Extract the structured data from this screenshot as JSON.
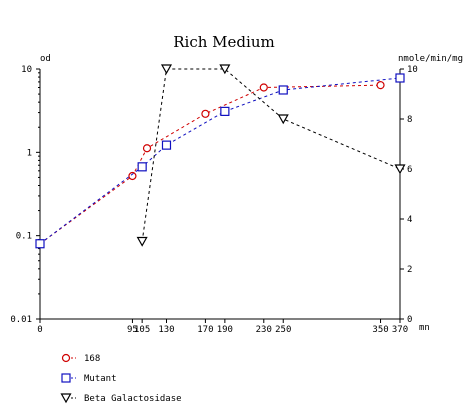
{
  "chart_data": {
    "type": "line",
    "title": "Rich Medium",
    "x": {
      "unit": "mn",
      "range": [
        0,
        370
      ],
      "tick_labels": [
        "0",
        "95",
        "105",
        "130",
        "170",
        "190",
        "230",
        "250",
        "350",
        "370"
      ]
    },
    "y_left": {
      "label": "od",
      "scale": "log",
      "range": [
        0.01,
        10
      ],
      "tick_labels": [
        "10",
        "1",
        "0.1",
        "0.01"
      ]
    },
    "y_right": {
      "label": "nmole/min/mg",
      "scale": "linear",
      "range": [
        0,
        10
      ],
      "tick_labels": [
        "10",
        "8",
        "6",
        "4",
        "2",
        "0"
      ]
    },
    "series": [
      {
        "name": "168",
        "axis": "left",
        "color": "#d00000",
        "marker": "circle",
        "x": [
          0,
          95,
          110,
          170,
          230,
          350
        ],
        "y": [
          0.08,
          0.52,
          1.12,
          2.9,
          6.0,
          6.4
        ]
      },
      {
        "name": "Mutant",
        "axis": "left",
        "color": "#1010c0",
        "marker": "square",
        "x": [
          0,
          105,
          130,
          190,
          250,
          370
        ],
        "y": [
          0.08,
          0.67,
          1.22,
          3.1,
          5.6,
          7.8
        ]
      },
      {
        "name": "Beta Galactosidase",
        "axis": "right",
        "color": "#000000",
        "marker": "triangle-down",
        "x": [
          105,
          130,
          190,
          250,
          370
        ],
        "y": [
          3.1,
          10,
          10,
          8,
          6
        ]
      }
    ],
    "legend_position": "bottom-left",
    "grid": false
  }
}
